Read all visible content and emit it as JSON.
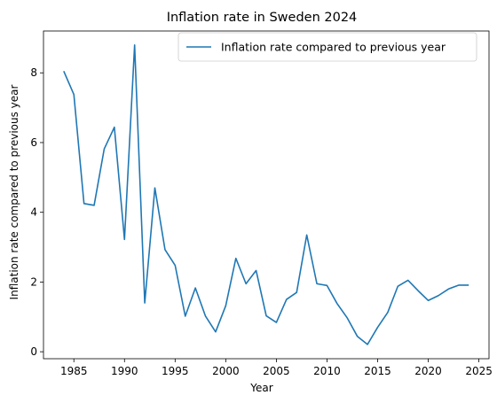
{
  "chart_data": {
    "type": "line",
    "title": "Inflation rate in Sweden 2024",
    "xlabel": "Year",
    "ylabel": "Inflation rate compared to previous year",
    "xlim": [
      1982,
      2026
    ],
    "ylim": [
      -0.2,
      9.2
    ],
    "xticks": [
      1985,
      1990,
      1995,
      2000,
      2005,
      2010,
      2015,
      2020,
      2025
    ],
    "yticks": [
      0,
      2,
      4,
      6,
      8
    ],
    "grid": false,
    "legend_position": "top-right",
    "series": [
      {
        "name": "Inflation rate compared to previous year",
        "color": "#1f77b4",
        "x": [
          1984,
          1985,
          1986,
          1987,
          1988,
          1989,
          1990,
          1991,
          1992,
          1993,
          1994,
          1995,
          1996,
          1997,
          1998,
          1999,
          2000,
          2001,
          2002,
          2003,
          2004,
          2005,
          2006,
          2007,
          2008,
          2009,
          2010,
          2011,
          2012,
          2013,
          2014,
          2015,
          2016,
          2017,
          2018,
          2019,
          2020,
          2021,
          2022,
          2023,
          2024
        ],
        "y": [
          8.05,
          7.38,
          4.25,
          4.2,
          5.82,
          6.44,
          3.22,
          8.8,
          1.4,
          4.7,
          2.93,
          2.48,
          1.02,
          1.83,
          1.02,
          0.57,
          1.32,
          2.68,
          1.95,
          2.33,
          1.03,
          0.84,
          1.5,
          1.7,
          3.35,
          1.95,
          1.9,
          1.38,
          0.97,
          0.44,
          0.21,
          0.7,
          1.13,
          1.88,
          2.05,
          1.75,
          1.47,
          1.61,
          1.8,
          1.91,
          1.91
        ]
      }
    ]
  }
}
